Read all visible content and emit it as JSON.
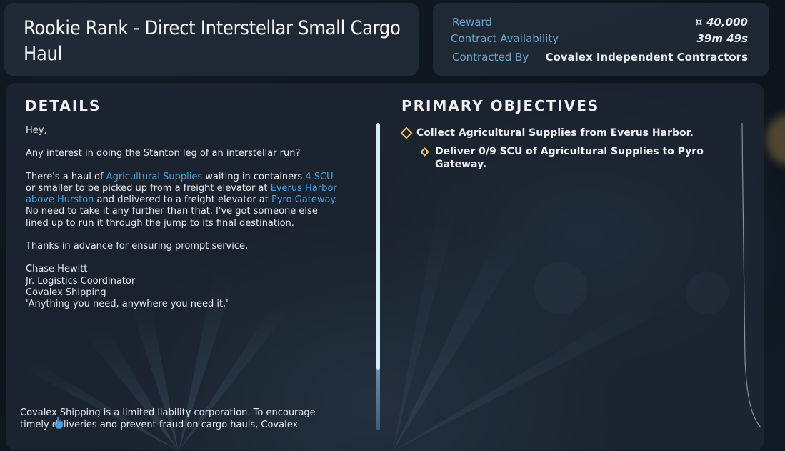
{
  "contract": {
    "title": "Rookie Rank - Direct Interstellar Small Cargo Haul"
  },
  "info": {
    "reward_label": "Reward",
    "reward_icon": "¤",
    "reward_value": "40,000",
    "availability_label": "Contract Availability",
    "availability_value": "39m 49s",
    "contracted_by_label": "Contracted By",
    "contracted_by_value": "Covalex Independent Contractors"
  },
  "details": {
    "heading": "DETAILS",
    "greeting": "Hey,",
    "intro": "Any interest in doing the Stanton leg of an interstellar run?",
    "body_1": "There's a haul of ",
    "link_cargo": "Agricultural Supplies",
    "body_2": " waiting in containers ",
    "link_size": "4 SCU",
    "body_3": " or smaller to be picked up from a freight elevator at ",
    "link_origin": "Everus Harbor above Hurston",
    "body_4": " and delivered to a freight elevator at ",
    "link_dest": "Pyro Gateway",
    "body_5": ". No need to take it any further than that. I've got someone else lined up to run it through the jump to its final destination.",
    "thanks": "Thanks in advance for ensuring prompt service,",
    "sig_name": "Chase Hewitt",
    "sig_title": "Jr. Logistics Coordinator",
    "sig_company": "Covalex Shipping",
    "sig_motto": "'Anything you need, anywhere you need it.'",
    "footer": "Covalex Shipping is a limited liability corporation. To encourage timely deliveries and prevent fraud on cargo hauls, Covalex"
  },
  "objectives": {
    "heading": "PRIMARY OBJECTIVES",
    "items": [
      {
        "text": "Collect Agricultural Supplies from Everus Harbor.",
        "level": 1
      },
      {
        "text": "Deliver 0/9 SCU of Agricultural Supplies to Pyro Gateway.",
        "level": 2
      }
    ]
  },
  "colors": {
    "accent_label": "#6ea5cf",
    "link": "#4aa3e4",
    "objective_marker": "#e8c765"
  }
}
